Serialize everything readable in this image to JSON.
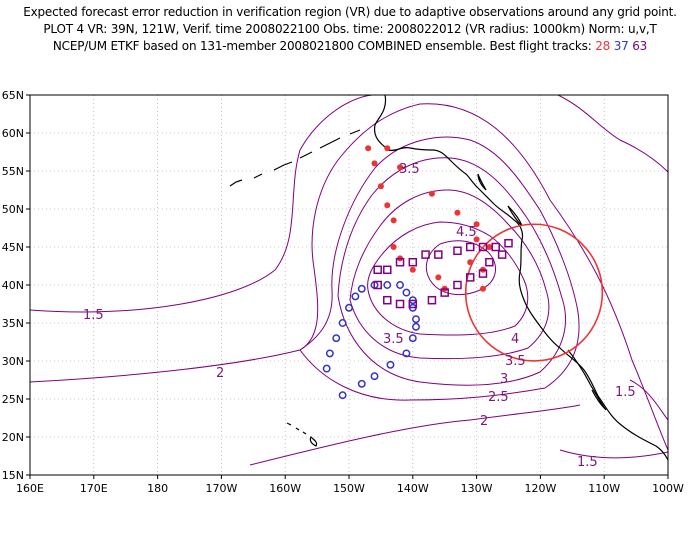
{
  "header": {
    "line1": "Expected forecast error reduction in verification region (VR) due to adaptive observations around any grid point.",
    "line2": "PLOT 4 VR: 39N, 121W, Verif. time 2008022100 Obs. time: 2008022012 (VR radius: 1000km) Norm: u,v,T",
    "line3_prefix": "NCEP/UM ETKF based on 131-member 2008021800 COMBINED ensemble.  Best flight tracks:",
    "track_a": "28",
    "track_b": "37",
    "track_c": "63"
  },
  "colors": {
    "track_a": "#ee3333",
    "track_b": "#3333cc",
    "track_c": "#800080",
    "contour": "#800080",
    "verification_circle": "#ee3333",
    "coastline": "#000000",
    "grid": "#999999"
  },
  "map": {
    "projection": "lat-lon",
    "lon_range": [
      160,
      260
    ],
    "lat_range": [
      15,
      65
    ],
    "grid": "dotted",
    "x_tick_labels": [
      "160E",
      "170E",
      "180",
      "170W",
      "160W",
      "150W",
      "140W",
      "130W",
      "120W",
      "110W",
      "100W"
    ],
    "y_tick_labels": [
      "15N",
      "20N",
      "25N",
      "30N",
      "35N",
      "40N",
      "45N",
      "50N",
      "55N",
      "60N",
      "65N"
    ],
    "contour_labels": [
      "1.5",
      "2",
      "2.5",
      "3",
      "3.5",
      "4",
      "4.5",
      "3.5",
      "3.5",
      "1.5",
      "2",
      "1.5"
    ],
    "verification_region": {
      "lat": 39,
      "lon": -121,
      "radius_km": 1000
    }
  },
  "tracks": {
    "track_a_marker": "filled-circle",
    "track_b_marker": "open-circle",
    "track_c_marker": "open-square",
    "track_a_points": [
      [
        -147,
        58
      ],
      [
        -144,
        58
      ],
      [
        -146,
        56
      ],
      [
        -142,
        55.5
      ],
      [
        -145,
        53
      ],
      [
        -137,
        52
      ],
      [
        -144,
        50.5
      ],
      [
        -133,
        49.5
      ],
      [
        -130,
        48
      ],
      [
        -143,
        48.5
      ],
      [
        -130,
        46
      ],
      [
        -143,
        45
      ],
      [
        -128,
        45
      ],
      [
        -142,
        43.5
      ],
      [
        -131,
        43
      ],
      [
        -140,
        42
      ],
      [
        -129,
        42
      ],
      [
        -135,
        39.5
      ],
      [
        -129,
        39.5
      ],
      [
        -136,
        41
      ]
    ],
    "track_b_points": [
      [
        -148,
        39.5
      ],
      [
        -146,
        40
      ],
      [
        -144,
        40
      ],
      [
        -142,
        40
      ],
      [
        -141,
        39
      ],
      [
        -140,
        38
      ],
      [
        -140,
        37
      ],
      [
        -139.5,
        35.5
      ],
      [
        -139.5,
        34.5
      ],
      [
        -140,
        33
      ],
      [
        -141,
        31
      ],
      [
        -143.5,
        29.5
      ],
      [
        -146,
        28
      ],
      [
        -148,
        27
      ],
      [
        -151,
        25.5
      ],
      [
        -153.5,
        29
      ],
      [
        -153,
        31
      ],
      [
        -152,
        33
      ],
      [
        -151,
        35
      ],
      [
        -150,
        37
      ],
      [
        -149,
        38.5
      ]
    ],
    "track_c_points": [
      [
        -145.5,
        40
      ],
      [
        -145.5,
        42
      ],
      [
        -144,
        42
      ],
      [
        -142,
        43
      ],
      [
        -140,
        43
      ],
      [
        -138,
        44
      ],
      [
        -136,
        44
      ],
      [
        -133,
        44.5
      ],
      [
        -131,
        45
      ],
      [
        -129,
        45
      ],
      [
        -127,
        45
      ],
      [
        -125,
        45.5
      ],
      [
        -126,
        44
      ],
      [
        -128,
        43
      ],
      [
        -129,
        41.5
      ],
      [
        -131,
        41
      ],
      [
        -133,
        40
      ],
      [
        -135,
        39
      ],
      [
        -137,
        38
      ],
      [
        -140,
        37.5
      ],
      [
        -142,
        37.5
      ],
      [
        -144,
        38
      ]
    ]
  }
}
